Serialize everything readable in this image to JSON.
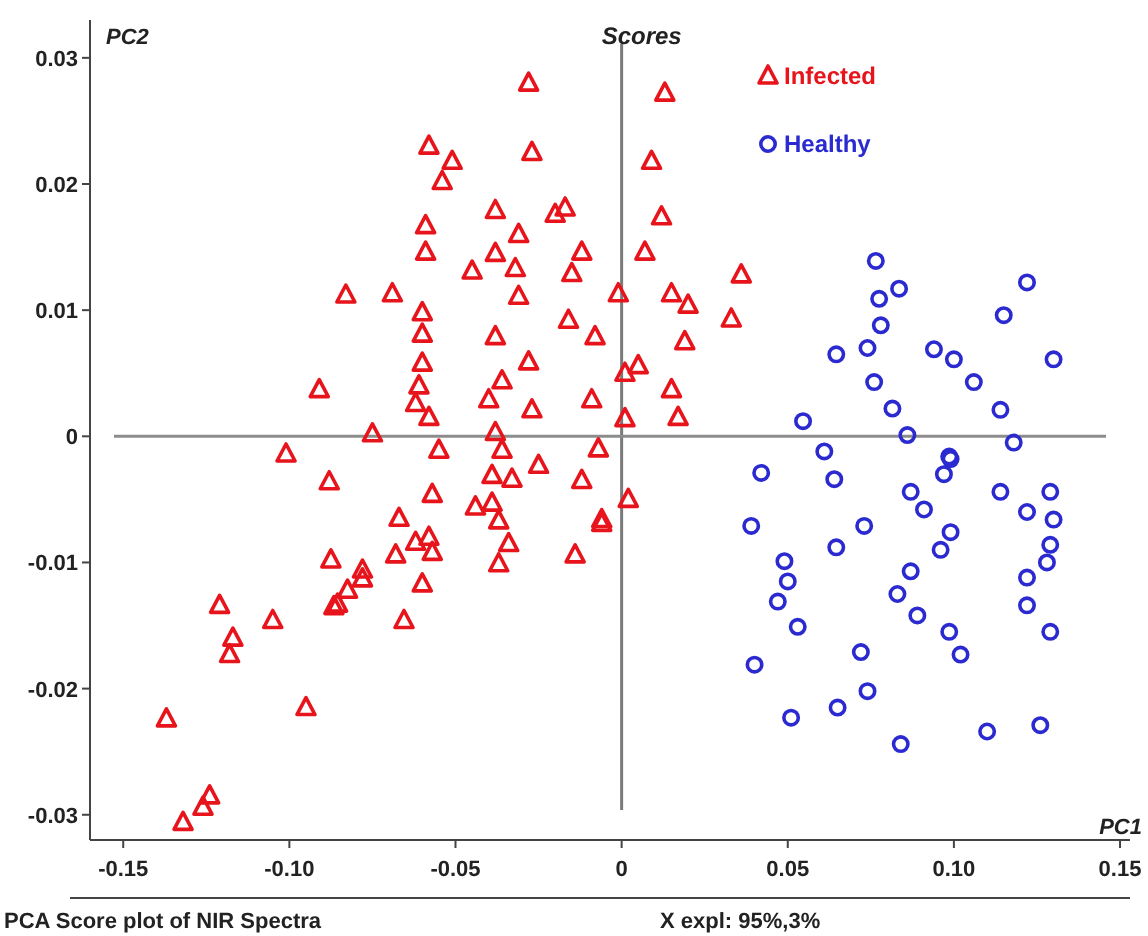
{
  "chart_data": {
    "type": "scatter",
    "title": "Scores",
    "xlabel": "PC1",
    "ylabel": "PC2",
    "annotations": [
      "PCA Score plot of NIR Spectra",
      "X  expl: 95%,3%"
    ],
    "xlim": [
      -0.16,
      0.153
    ],
    "ylim": [
      -0.032,
      0.033
    ],
    "xticks": [
      -0.15,
      {
        "value": -0.1,
        "label": "-0.10"
      },
      -0.05,
      0,
      0.05,
      {
        "value": 0.1,
        "label": "0.10"
      },
      0.15
    ],
    "yticks": [
      0.03,
      0.02,
      0.01,
      0,
      -0.01,
      -0.02,
      -0.03
    ],
    "grid": false,
    "legend": "top right",
    "ref_lines": [
      {
        "axis": "x",
        "value": 0,
        "color": "#7a7a7a"
      },
      {
        "axis": "y",
        "value": 0,
        "color": "#8c8c8c"
      }
    ],
    "series": [
      {
        "name": "Infected",
        "color": "#e8141c",
        "marker": "triangle",
        "x": [
          -0.028,
          -0.058,
          -0.027,
          -0.051,
          -0.054,
          -0.038,
          -0.02,
          -0.017,
          -0.059,
          -0.031,
          -0.059,
          -0.038,
          -0.012,
          -0.045,
          -0.032,
          -0.015,
          -0.083,
          -0.069,
          -0.031,
          -0.001,
          -0.06,
          -0.06,
          -0.016,
          -0.008,
          -0.038,
          -0.028,
          -0.06,
          -0.036,
          -0.061,
          -0.091,
          -0.04,
          -0.062,
          -0.058,
          -0.027,
          -0.009,
          0.001,
          0.005,
          0.001,
          -0.075,
          -0.038,
          -0.101,
          -0.055,
          -0.036,
          -0.007,
          0.013,
          0.009,
          0.012,
          0.007,
          0.015,
          0.02,
          0.036,
          0.033,
          0.019,
          0.015,
          0.017,
          -0.088,
          -0.057,
          -0.039,
          -0.033,
          -0.025,
          -0.012,
          0.002,
          -0.044,
          -0.039,
          -0.037,
          -0.067,
          -0.006,
          -0.006,
          -0.062,
          -0.058,
          -0.057,
          -0.034,
          -0.068,
          -0.0875,
          -0.014,
          -0.037,
          -0.078,
          -0.078,
          -0.06,
          -0.0825,
          -0.0855,
          -0.0866,
          -0.121,
          -0.105,
          -0.0655,
          -0.117,
          -0.118,
          -0.137,
          -0.095,
          -0.124,
          -0.126,
          -0.132
        ],
        "values": [
          0.028,
          0.023,
          0.0225,
          0.0218,
          0.0202,
          0.0179,
          0.0176,
          0.0181,
          0.0167,
          0.016,
          0.0146,
          0.0145,
          0.0146,
          0.0131,
          0.0133,
          0.0129,
          0.0112,
          0.0113,
          0.0111,
          0.0113,
          0.0098,
          0.0081,
          0.0092,
          0.0079,
          0.0079,
          0.0059,
          0.0058,
          0.0044,
          0.004,
          0.0037,
          0.0029,
          0.0026,
          0.0015,
          0.0021,
          0.0029,
          0.005,
          0.0056,
          0.0014,
          0.0002,
          0.0003,
          -0.0014,
          -0.0011,
          -0.0011,
          -0.001,
          0.0272,
          0.0218,
          0.0174,
          0.0146,
          0.0113,
          0.0104,
          0.0128,
          0.0093,
          0.0075,
          0.0037,
          0.0015,
          -0.0036,
          -0.0046,
          -0.0031,
          -0.0034,
          -0.0023,
          -0.0035,
          -0.005,
          -0.0056,
          -0.0053,
          -0.0067,
          -0.0065,
          -0.0066,
          -0.0069,
          -0.0084,
          -0.008,
          -0.0092,
          -0.0085,
          -0.0094,
          -0.0098,
          -0.0094,
          -0.0101,
          -0.0106,
          -0.0113,
          -0.0117,
          -0.0122,
          -0.0133,
          -0.0135,
          -0.0134,
          -0.0146,
          -0.0146,
          -0.016,
          -0.0173,
          -0.0224,
          -0.0215,
          -0.0285,
          -0.0294,
          -0.0306
        ]
      },
      {
        "name": "Healthy",
        "color": "#2a2ad0",
        "marker": "circle",
        "x": [
          0.0765,
          0.0835,
          0.0775,
          0.122,
          0.078,
          0.115,
          0.0646,
          0.074,
          0.094,
          0.1,
          0.13,
          0.076,
          0.106,
          0.0815,
          0.114,
          0.0546,
          0.086,
          0.118,
          0.061,
          0.0986,
          0.042,
          0.064,
          0.099,
          0.097,
          0.087,
          0.114,
          0.129,
          0.091,
          0.122,
          0.13,
          0.039,
          0.073,
          0.099,
          0.0646,
          0.096,
          0.129,
          0.128,
          0.049,
          0.087,
          0.122,
          0.05,
          0.083,
          0.047,
          0.122,
          0.089,
          0.053,
          0.0986,
          0.129,
          0.072,
          0.102,
          0.04,
          0.074,
          0.065,
          0.051,
          0.11,
          0.126,
          0.084
        ],
        "values": [
          0.0139,
          0.0117,
          0.0109,
          0.0122,
          0.0088,
          0.0096,
          0.0065,
          0.007,
          0.0069,
          0.0061,
          0.0061,
          0.0043,
          0.0043,
          0.0022,
          0.0021,
          0.0012,
          0.0001,
          -0.0005,
          -0.0012,
          -0.0016,
          -0.0029,
          -0.0034,
          -0.0018,
          -0.003,
          -0.0044,
          -0.0044,
          -0.0044,
          -0.0058,
          -0.006,
          -0.0066,
          -0.0071,
          -0.0071,
          -0.0076,
          -0.0088,
          -0.009,
          -0.0086,
          -0.01,
          -0.0099,
          -0.0107,
          -0.0112,
          -0.0115,
          -0.0125,
          -0.0131,
          -0.0134,
          -0.0142,
          -0.0151,
          -0.0155,
          -0.0155,
          -0.0171,
          -0.0173,
          -0.0181,
          -0.0202,
          -0.0215,
          -0.0223,
          -0.0234,
          -0.0229,
          -0.0244
        ]
      }
    ]
  }
}
